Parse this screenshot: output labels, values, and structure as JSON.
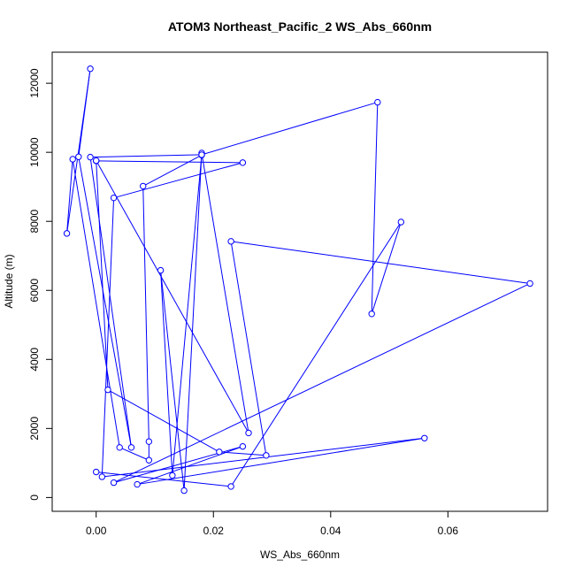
{
  "chart_data": {
    "type": "line",
    "title": "ATOM3 Northeast_Pacific_2 WS_Abs_660nm",
    "xlabel": "WS_Abs_660nm",
    "ylabel": "Altitude (m)",
    "xlim": [
      -0.0075,
      0.077
    ],
    "ylim": [
      -400,
      12900
    ],
    "xticks": [
      0.0,
      0.02,
      0.04,
      0.06
    ],
    "xtick_labels": [
      "0.00",
      "0.02",
      "0.04",
      "0.06"
    ],
    "yticks": [
      0,
      2000,
      4000,
      6000,
      8000,
      10000,
      12000
    ],
    "ytick_labels": [
      "0",
      "2000",
      "4000",
      "6000",
      "8000",
      "10000",
      "12000"
    ],
    "grid": false,
    "series_color": "#0000ff",
    "series": [
      {
        "marker": "open-circle",
        "points": [
          [
            0.0,
            9750
          ],
          [
            0.025,
            9700
          ],
          [
            0.003,
            8680
          ],
          [
            0.001,
            600
          ],
          [
            0.056,
            1720
          ],
          [
            0.007,
            380
          ],
          [
            0.025,
            1480
          ],
          [
            0.003,
            430
          ],
          [
            0.074,
            6200
          ],
          [
            0.023,
            7420
          ],
          [
            0.029,
            1220
          ],
          [
            0.021,
            1320
          ],
          [
            0.002,
            3120
          ],
          [
            0.0,
            9760
          ],
          [
            0.026,
            1870
          ],
          [
            0.018,
            9980
          ],
          [
            0.015,
            200
          ],
          [
            0.011,
            6580
          ],
          [
            0.013,
            640
          ],
          [
            0.018,
            9920
          ],
          [
            0.008,
            9020
          ],
          [
            0.009,
            1620
          ],
          [
            0.009,
            1080
          ],
          [
            0.004,
            1450
          ],
          [
            -0.004,
            9800
          ],
          [
            -0.005,
            7650
          ],
          [
            -0.001,
            12420
          ],
          [
            -0.003,
            9870
          ],
          [
            0.006,
            1450
          ],
          [
            -0.001,
            9860
          ],
          [
            0.018,
            9930
          ],
          [
            0.048,
            11450
          ],
          [
            0.047,
            5320
          ],
          [
            0.052,
            7980
          ],
          [
            0.023,
            320
          ],
          [
            0.0,
            740
          ]
        ]
      }
    ]
  }
}
